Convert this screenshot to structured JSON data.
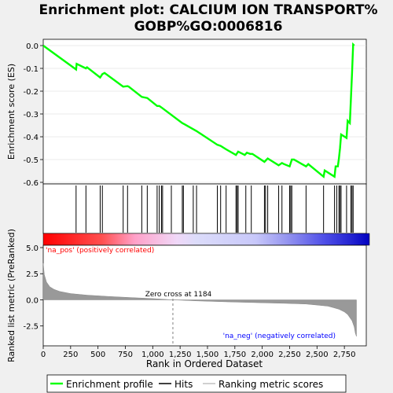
{
  "chart_data": {
    "type": "line",
    "title_line1": "Enrichment plot: CALCIUM ION TRANSPORT%",
    "title_line2": "GOBP%GO:0006816",
    "es_panel": {
      "ylabel": "Enrichment score (ES)",
      "ylim": [
        -0.6,
        0.0
      ],
      "yticks": [
        "0.0",
        "-0.1",
        "-0.2",
        "-0.3",
        "-0.4",
        "-0.5",
        "-0.6"
      ],
      "ytick_values": [
        0.0,
        -0.1,
        -0.2,
        -0.3,
        -0.4,
        -0.5,
        -0.6
      ],
      "x": [
        0,
        300,
        305,
        390,
        400,
        520,
        540,
        560,
        730,
        770,
        780,
        900,
        950,
        1040,
        1060,
        1090,
        1270,
        1290,
        1400,
        1590,
        1620,
        1670,
        1760,
        1780,
        1800,
        1840,
        1860,
        1890,
        1910,
        2020,
        2050,
        2150,
        2180,
        2200,
        2250,
        2270,
        2290,
        2400,
        2420,
        2560,
        2570,
        2660,
        2670,
        2690,
        2700,
        2710,
        2720,
        2770,
        2780,
        2800,
        2810,
        2820,
        2830,
        2840
      ],
      "es": [
        0.0,
        -0.105,
        -0.08,
        -0.1,
        -0.095,
        -0.14,
        -0.125,
        -0.12,
        -0.18,
        -0.178,
        -0.18,
        -0.225,
        -0.23,
        -0.265,
        -0.265,
        -0.275,
        -0.34,
        -0.345,
        -0.375,
        -0.435,
        -0.44,
        -0.455,
        -0.48,
        -0.465,
        -0.47,
        -0.48,
        -0.47,
        -0.475,
        -0.475,
        -0.51,
        -0.495,
        -0.525,
        -0.515,
        -0.52,
        -0.53,
        -0.5,
        -0.5,
        -0.53,
        -0.52,
        -0.575,
        -0.548,
        -0.575,
        -0.53,
        -0.53,
        -0.495,
        -0.45,
        -0.39,
        -0.405,
        -0.33,
        -0.34,
        -0.23,
        -0.12,
        0.005,
        0.0
      ]
    },
    "hits": [
      300,
      390,
      520,
      540,
      730,
      770,
      900,
      950,
      1040,
      1060,
      1080,
      1090,
      1170,
      1270,
      1280,
      1370,
      1400,
      1590,
      1620,
      1670,
      1760,
      1770,
      1780,
      1850,
      1900,
      2020,
      2030,
      2050,
      2150,
      2180,
      2250,
      2260,
      2270,
      2400,
      2560,
      2660,
      2680,
      2700,
      2710,
      2720,
      2770,
      2810,
      2820,
      2830
    ],
    "rank_panel": {
      "ylabel": "Ranked list metric (PreRanked)",
      "xlabel": "Rank in Ordered Dataset",
      "ylim": [
        -3.8,
        5.0
      ],
      "yticks": [
        "5.0",
        "2.5",
        "0.0",
        "-2.5"
      ],
      "ytick_values": [
        5.0,
        2.5,
        0.0,
        -2.5
      ],
      "xticks": [
        "0",
        "250",
        "500",
        "750",
        "1,000",
        "1,250",
        "1,500",
        "1,750",
        "2,000",
        "2,250",
        "2,500",
        "2,750"
      ],
      "xtick_values": [
        0,
        250,
        500,
        750,
        1000,
        1250,
        1500,
        1750,
        2000,
        2250,
        2500,
        2750
      ],
      "xlim": [
        0,
        2950
      ],
      "n_genes": 2860,
      "zero_cross": 1184,
      "zero_cross_label": "Zero cross at 1184",
      "pos_label": "'na_pos' (positively correlated)",
      "neg_label": "'na_neg' (negatively correlated)",
      "metric_profile": {
        "rank": [
          0,
          10,
          30,
          60,
          100,
          150,
          250,
          400,
          600,
          800,
          1000,
          1184,
          1400,
          1700,
          2000,
          2200,
          2400,
          2500,
          2600,
          2650,
          2700,
          2750,
          2780,
          2800,
          2820,
          2840,
          2850,
          2860
        ],
        "value": [
          3.5,
          2.4,
          1.7,
          1.25,
          1.0,
          0.8,
          0.6,
          0.45,
          0.32,
          0.22,
          0.12,
          0.0,
          -0.1,
          -0.2,
          -0.28,
          -0.33,
          -0.4,
          -0.5,
          -0.6,
          -0.75,
          -0.9,
          -1.15,
          -1.4,
          -1.7,
          -2.0,
          -2.6,
          -3.2,
          -3.5
        ]
      }
    },
    "legend": {
      "items": [
        "Enrichment profile",
        "Hits",
        "Ranking metric scores"
      ],
      "colors": [
        "#00ff00",
        "#000000",
        "#c0c0c0"
      ]
    },
    "colors": {
      "es_line": "#00ff00",
      "pos_label": "#ff0000",
      "neg_label": "#0000ff",
      "metric_fill": "#999999",
      "zero_line": "#808080"
    }
  }
}
